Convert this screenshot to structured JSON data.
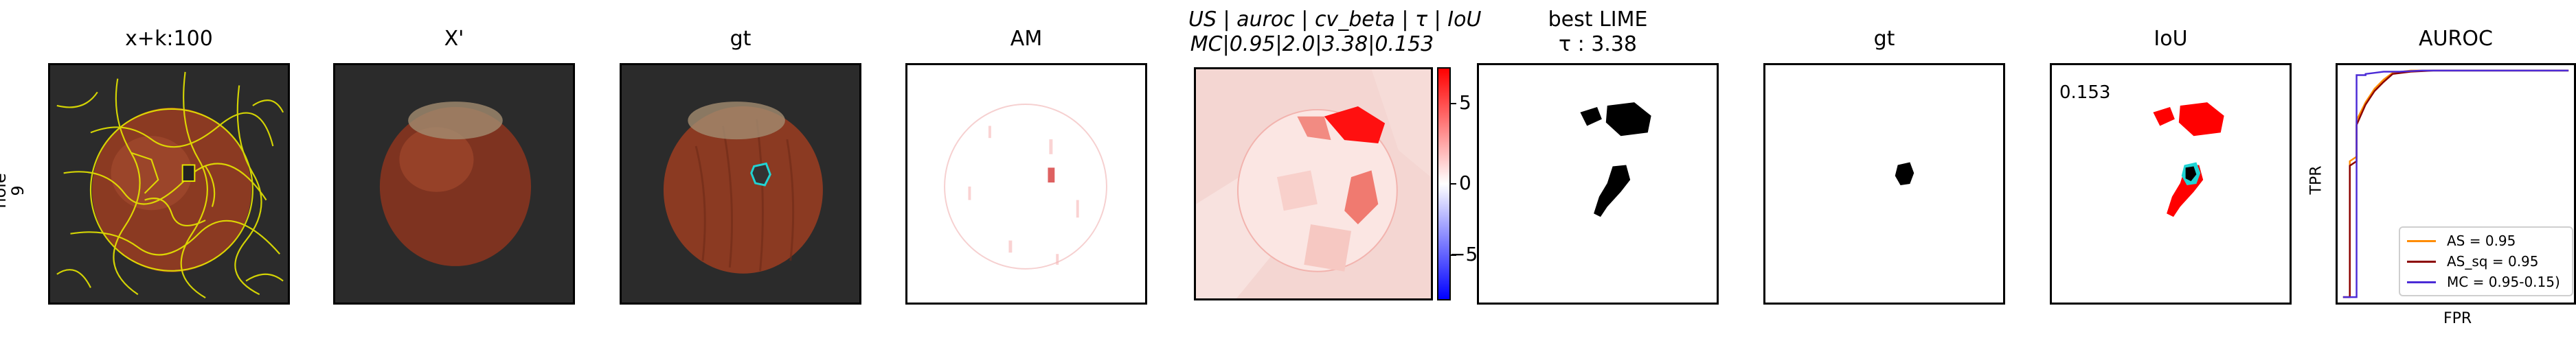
{
  "row_label": {
    "line1": "hole",
    "line2": "9"
  },
  "panels": [
    {
      "title": "x+k:100"
    },
    {
      "title": "X'"
    },
    {
      "title": "gt"
    },
    {
      "title": "AM"
    },
    {
      "title_line1": "US | auroc | cv_beta | τ | IoU",
      "title_line2": "MC|0.95|2.0|3.38|0.153"
    },
    {
      "title_line1": "best LIME",
      "title_line2": "τ : 3.38"
    },
    {
      "title": "gt"
    },
    {
      "title": "IoU",
      "value": "0.153"
    },
    {
      "title": "AUROC"
    }
  ],
  "colorbar": {
    "ticks": [
      "5",
      "0",
      "−5"
    ]
  },
  "colors": {
    "red": "#ff0000",
    "blue": "#0000ff",
    "cyan": "#21d4d4",
    "yellow": "#e6e600",
    "nut": "#8b3a22",
    "dark_bg": "#2a2a2a"
  },
  "chart_data": {
    "type": "line",
    "title": "AUROC",
    "xlabel": "FPR",
    "ylabel": "TPR",
    "xlim": [
      0,
      1
    ],
    "ylim": [
      0,
      1
    ],
    "legend_position": "bottom-right",
    "series": [
      {
        "name": "AS = 0.95",
        "color": "#ff8c00",
        "x": [
          0,
          0.03,
          0.03,
          0.06,
          0.06,
          0.1,
          0.14,
          0.18,
          0.22,
          0.3,
          0.4,
          0.55,
          0.75,
          1.0
        ],
        "y": [
          0,
          0.0,
          0.6,
          0.62,
          0.78,
          0.86,
          0.92,
          0.96,
          0.99,
          1.0,
          1.0,
          1.0,
          1.0,
          1.0
        ]
      },
      {
        "name": "AS_sq = 0.95",
        "color": "#8b0000",
        "x": [
          0,
          0.03,
          0.03,
          0.06,
          0.06,
          0.1,
          0.14,
          0.18,
          0.22,
          0.3,
          0.4,
          0.55,
          0.75,
          1.0
        ],
        "y": [
          0,
          0.0,
          0.58,
          0.6,
          0.76,
          0.85,
          0.91,
          0.95,
          0.985,
          0.995,
          1.0,
          1.0,
          1.0,
          1.0
        ]
      },
      {
        "name": "MC = 0.95-0.15)",
        "color": "#4b2bd6",
        "x": [
          0,
          0.06,
          0.06,
          0.1,
          0.1,
          0.14,
          0.18,
          0.25,
          0.35,
          0.5,
          0.7,
          1.0
        ],
        "y": [
          0,
          0.0,
          0.98,
          0.98,
          0.985,
          0.99,
          0.995,
          0.995,
          1.0,
          1.0,
          1.0,
          1.0
        ]
      }
    ]
  }
}
